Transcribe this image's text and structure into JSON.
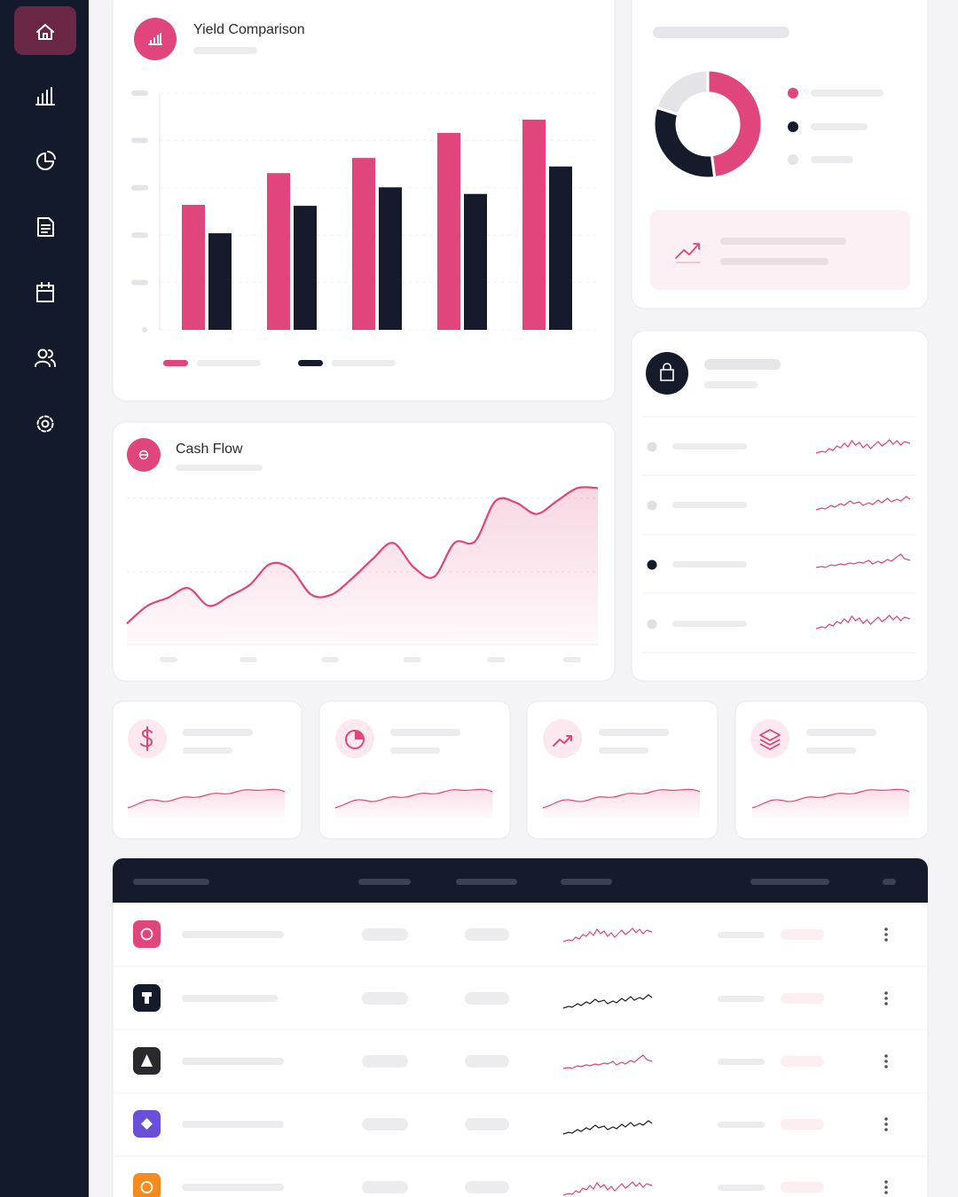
{
  "chart_data": [
    {
      "type": "bar",
      "title": "Yield Comparison",
      "categories": [
        null,
        null,
        null,
        null,
        null
      ],
      "series": [
        {
          "color": "#e0457b",
          "values": [
            2.64,
            3.31,
            3.63,
            4.16,
            4.44
          ]
        },
        {
          "color": "#151b2b",
          "values": [
            2.04,
            2.62,
            3.01,
            2.87,
            3.45
          ]
        }
      ],
      "ylim": [
        0,
        5
      ],
      "yticks": [
        0,
        1,
        2,
        3,
        4,
        5
      ],
      "grid": true
    },
    {
      "type": "area",
      "title": "Cash Flow",
      "categories": [
        null,
        null,
        null,
        null,
        null,
        null,
        null,
        null,
        null,
        null,
        null,
        null,
        null,
        null,
        null,
        null,
        null,
        null,
        null,
        null,
        null,
        null,
        null,
        null
      ],
      "values": [
        1.3,
        2.4,
        2.9,
        3.5,
        2.4,
        3.0,
        3.7,
        5.0,
        4.7,
        3.1,
        3.1,
        4.1,
        5.3,
        6.3,
        4.8,
        4.2,
        6.3,
        6.4,
        8.9,
        8.8,
        8.1,
        8.9,
        9.7,
        9.7
      ],
      "color": "#e0457b",
      "ylim": [
        0,
        10
      ]
    },
    {
      "type": "pie",
      "values": [
        48,
        32,
        20
      ],
      "colors": [
        "#e0457b",
        "#151b2b",
        "#e4e4e8"
      ]
    }
  ]
}
